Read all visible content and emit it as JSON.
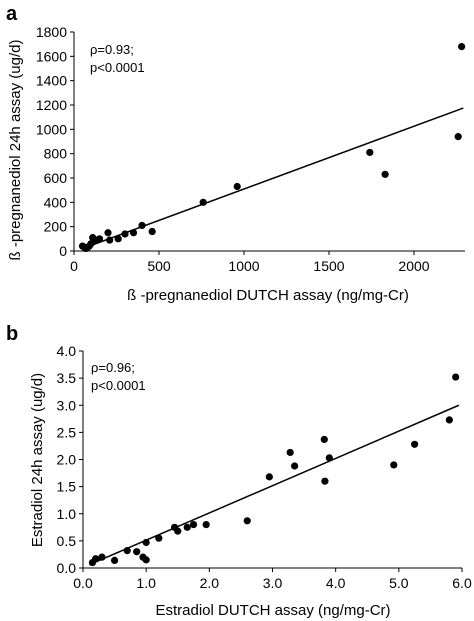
{
  "chart_data": [
    {
      "panel": "a",
      "type": "scatter",
      "title": "",
      "xlabel": "ß -pregnanediol DUTCH assay (ng/mg-Cr)",
      "ylabel": "ß -pregnanediol 24h assay (ug/d)",
      "xlim": [
        0,
        2300
      ],
      "ylim": [
        0,
        1800
      ],
      "xticks": [
        0,
        500,
        1000,
        1500,
        2000
      ],
      "yticks": [
        0,
        200,
        400,
        600,
        800,
        1000,
        1200,
        1400,
        1600,
        1800
      ],
      "grid": false,
      "annotations": [
        "ρ=0.93;",
        "p<0.0001"
      ],
      "points": [
        {
          "x": 50,
          "y": 40
        },
        {
          "x": 60,
          "y": 30
        },
        {
          "x": 70,
          "y": 20
        },
        {
          "x": 80,
          "y": 30
        },
        {
          "x": 90,
          "y": 40
        },
        {
          "x": 100,
          "y": 60
        },
        {
          "x": 110,
          "y": 110
        },
        {
          "x": 120,
          "y": 80
        },
        {
          "x": 140,
          "y": 90
        },
        {
          "x": 150,
          "y": 100
        },
        {
          "x": 200,
          "y": 150
        },
        {
          "x": 210,
          "y": 90
        },
        {
          "x": 260,
          "y": 100
        },
        {
          "x": 300,
          "y": 140
        },
        {
          "x": 350,
          "y": 150
        },
        {
          "x": 400,
          "y": 210
        },
        {
          "x": 460,
          "y": 160
        },
        {
          "x": 760,
          "y": 400
        },
        {
          "x": 960,
          "y": 530
        },
        {
          "x": 1740,
          "y": 810
        },
        {
          "x": 1830,
          "y": 630
        },
        {
          "x": 2260,
          "y": 940
        },
        {
          "x": 2280,
          "y": 1680
        }
      ],
      "trendline": {
        "x": [
          50,
          2290
        ],
        "y": [
          20,
          1175
        ]
      }
    },
    {
      "panel": "b",
      "type": "scatter",
      "title": "",
      "xlabel": "Estradiol DUTCH assay (ng/mg-Cr)",
      "ylabel": "Estradiol 24h assay (ug/d)",
      "xlim": [
        0,
        6
      ],
      "ylim": [
        0,
        4
      ],
      "xticks": [
        "0.0",
        "1.0",
        "2.0",
        "3.0",
        "4.0",
        "5.0",
        "6.0"
      ],
      "yticks": [
        "0.0",
        "0.5",
        "1.0",
        "1.5",
        "2.0",
        "2.5",
        "3.0",
        "3.5",
        "4.0"
      ],
      "grid": false,
      "annotations": [
        "ρ=0.96;",
        "p<0.0001"
      ],
      "points": [
        {
          "x": 0.15,
          "y": 0.1
        },
        {
          "x": 0.2,
          "y": 0.17
        },
        {
          "x": 0.3,
          "y": 0.2
        },
        {
          "x": 0.5,
          "y": 0.14
        },
        {
          "x": 0.7,
          "y": 0.32
        },
        {
          "x": 0.85,
          "y": 0.3
        },
        {
          "x": 0.95,
          "y": 0.2
        },
        {
          "x": 1.0,
          "y": 0.47
        },
        {
          "x": 1.0,
          "y": 0.15
        },
        {
          "x": 1.2,
          "y": 0.55
        },
        {
          "x": 1.45,
          "y": 0.75
        },
        {
          "x": 1.5,
          "y": 0.68
        },
        {
          "x": 1.65,
          "y": 0.75
        },
        {
          "x": 1.75,
          "y": 0.8
        },
        {
          "x": 1.95,
          "y": 0.8
        },
        {
          "x": 2.6,
          "y": 0.87
        },
        {
          "x": 2.95,
          "y": 1.68
        },
        {
          "x": 3.28,
          "y": 2.13
        },
        {
          "x": 3.35,
          "y": 1.88
        },
        {
          "x": 3.82,
          "y": 2.37
        },
        {
          "x": 3.83,
          "y": 1.6
        },
        {
          "x": 3.9,
          "y": 2.03
        },
        {
          "x": 4.92,
          "y": 1.9
        },
        {
          "x": 5.25,
          "y": 2.28
        },
        {
          "x": 5.8,
          "y": 2.73
        },
        {
          "x": 5.9,
          "y": 3.52
        }
      ],
      "trendline": {
        "x": [
          0.1,
          5.95
        ],
        "y": [
          0.06,
          3.0
        ]
      }
    }
  ]
}
